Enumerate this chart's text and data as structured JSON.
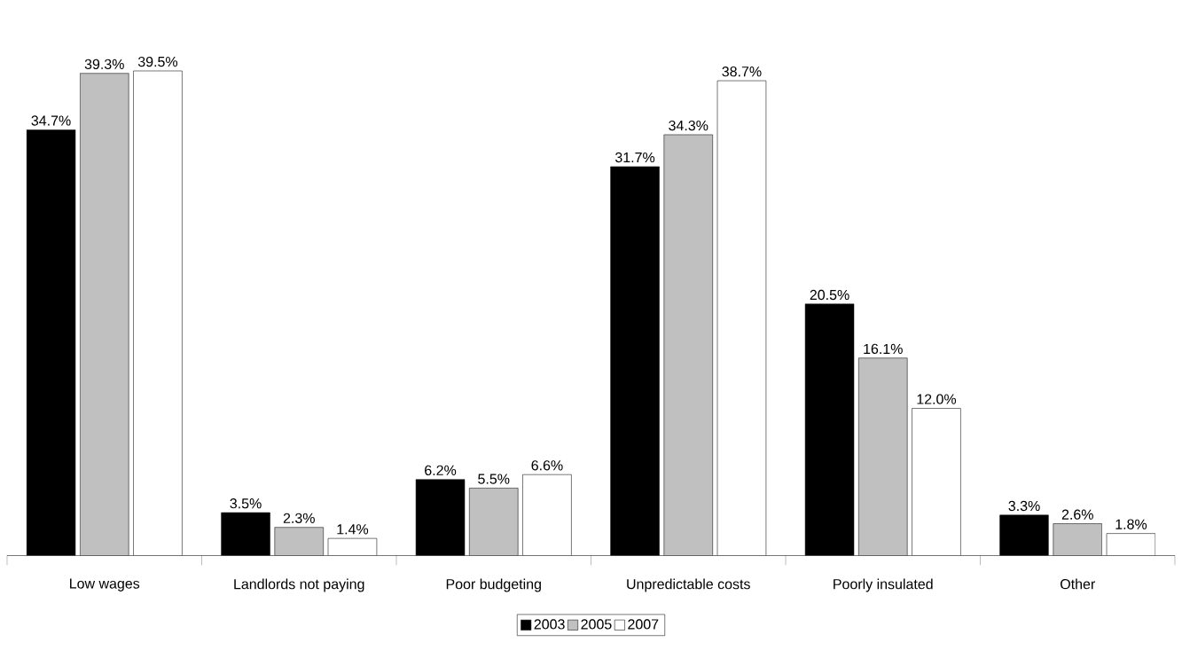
{
  "chart_data": {
    "type": "bar",
    "categories": [
      "Low wages",
      "Landlords not paying",
      "Poor budgeting",
      "Unpredictable costs",
      "Poorly insulated",
      "Other"
    ],
    "series": [
      {
        "name": "2003",
        "color": "#000000",
        "values": [
          34.7,
          3.5,
          6.2,
          31.7,
          20.5,
          3.3
        ],
        "value_labels": [
          "34.7%",
          "3.5%",
          "6.2%",
          "31.7%",
          "20.5%",
          "3.3%"
        ]
      },
      {
        "name": "2005",
        "color": "#c0c0c0",
        "values": [
          39.3,
          2.3,
          5.5,
          34.3,
          16.1,
          2.6
        ],
        "value_labels": [
          "39.3%",
          "2.3%",
          "5.5%",
          "34.3%",
          "16.1%",
          "2.6%"
        ]
      },
      {
        "name": "2007",
        "color": "#ffffff",
        "values": [
          39.5,
          1.4,
          6.6,
          38.7,
          12.0,
          1.8
        ],
        "value_labels": [
          "39.5%",
          "1.4%",
          "6.6%",
          "38.7%",
          "12.0%",
          "1.8%"
        ]
      }
    ],
    "legend": "bottom",
    "grid": false
  }
}
